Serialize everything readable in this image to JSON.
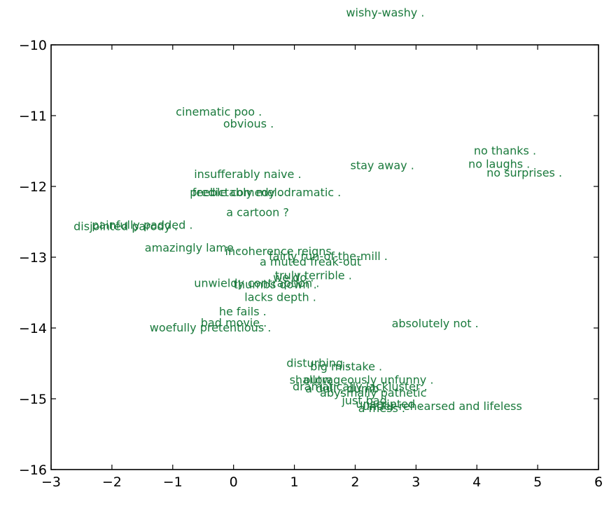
{
  "chart_data": {
    "type": "scatter",
    "title": "",
    "xlabel": "",
    "ylabel": "",
    "xlim": [
      -3,
      6
    ],
    "ylim": [
      -16,
      -10
    ],
    "y_inverted": true,
    "grid": false,
    "x_ticks": [
      "−3",
      "−2",
      "−1",
      "0",
      "1",
      "2",
      "3",
      "4",
      "5",
      "6"
    ],
    "y_ticks": [
      "−10",
      "−11",
      "−12",
      "−13",
      "−14",
      "−15",
      "−16"
    ],
    "text_color": "#1a7a3c",
    "points": [
      {
        "label": "wishy-washy .",
        "x": 1.85,
        "y": -9.55
      },
      {
        "label": "cinematic poo .",
        "x": -0.95,
        "y": -10.95
      },
      {
        "label": "obvious .",
        "x": -0.17,
        "y": -11.12
      },
      {
        "label": "no thanks .",
        "x": 3.95,
        "y": -11.5
      },
      {
        "label": "stay away .",
        "x": 1.92,
        "y": -11.71
      },
      {
        "label": "no laughs .",
        "x": 3.86,
        "y": -11.69
      },
      {
        "label": "no surprises .",
        "x": 4.16,
        "y": -11.81
      },
      {
        "label": "insufferably naive .",
        "x": -0.65,
        "y": -11.83
      },
      {
        "label": "feeble comedy .",
        "x": -0.68,
        "y": -12.09
      },
      {
        "label": "predictably melodramatic .",
        "x": -0.72,
        "y": -12.09
      },
      {
        "label": "a cartoon ?",
        "x": -0.12,
        "y": -12.37
      },
      {
        "label": "painfully padded .",
        "x": -2.33,
        "y": -12.55
      },
      {
        "label": "disjointed parody .",
        "x": -2.63,
        "y": -12.57
      },
      {
        "label": "amazingly lame .",
        "x": -1.46,
        "y": -12.87
      },
      {
        "label": "incoherence reigns",
        "x": -0.14,
        "y": -12.92
      },
      {
        "label": "fairly run-of-the-mill .",
        "x": 0.58,
        "y": -12.99
      },
      {
        "label": "a muted freak-out",
        "x": 0.43,
        "y": -13.07
      },
      {
        "label": "truly terrible .",
        "x": 0.68,
        "y": -13.26
      },
      {
        "label": "we do .",
        "x": 0.65,
        "y": -13.29
      },
      {
        "label": "unwieldy contraption .",
        "x": -0.65,
        "y": -13.37
      },
      {
        "label": "thumbs down .",
        "x": 0.0,
        "y": -13.39
      },
      {
        "label": "lacks depth .",
        "x": 0.18,
        "y": -13.57
      },
      {
        "label": "he fails .",
        "x": -0.24,
        "y": -13.77
      },
      {
        "label": "bad movie .",
        "x": -0.54,
        "y": -13.93
      },
      {
        "label": "woefully pretentious .",
        "x": -1.38,
        "y": -14.0
      },
      {
        "label": "absolutely not .",
        "x": 2.6,
        "y": -13.94
      },
      {
        "label": "disturbing .",
        "x": 0.87,
        "y": -14.5
      },
      {
        "label": "big mistake .",
        "x": 1.26,
        "y": -14.55
      },
      {
        "label": "shallow .",
        "x": 0.92,
        "y": -14.74
      },
      {
        "label": "outrageously unfunny .",
        "x": 1.15,
        "y": -14.74
      },
      {
        "label": "dramatically lackluster .",
        "x": 0.97,
        "y": -14.83
      },
      {
        "label": "a dull , dumb .",
        "x": 1.18,
        "y": -14.86
      },
      {
        "label": "abysmally pathetic",
        "x": 1.42,
        "y": -14.92
      },
      {
        "label": "just bad",
        "x": 1.78,
        "y": -15.03
      },
      {
        "label": "unscripted .",
        "x": 2.01,
        "y": -15.08
      },
      {
        "label": "under-rehearsed and lifeless",
        "x": 2.12,
        "y": -15.11
      },
      {
        "label": "a mess .",
        "x": 2.05,
        "y": -15.14
      }
    ]
  }
}
